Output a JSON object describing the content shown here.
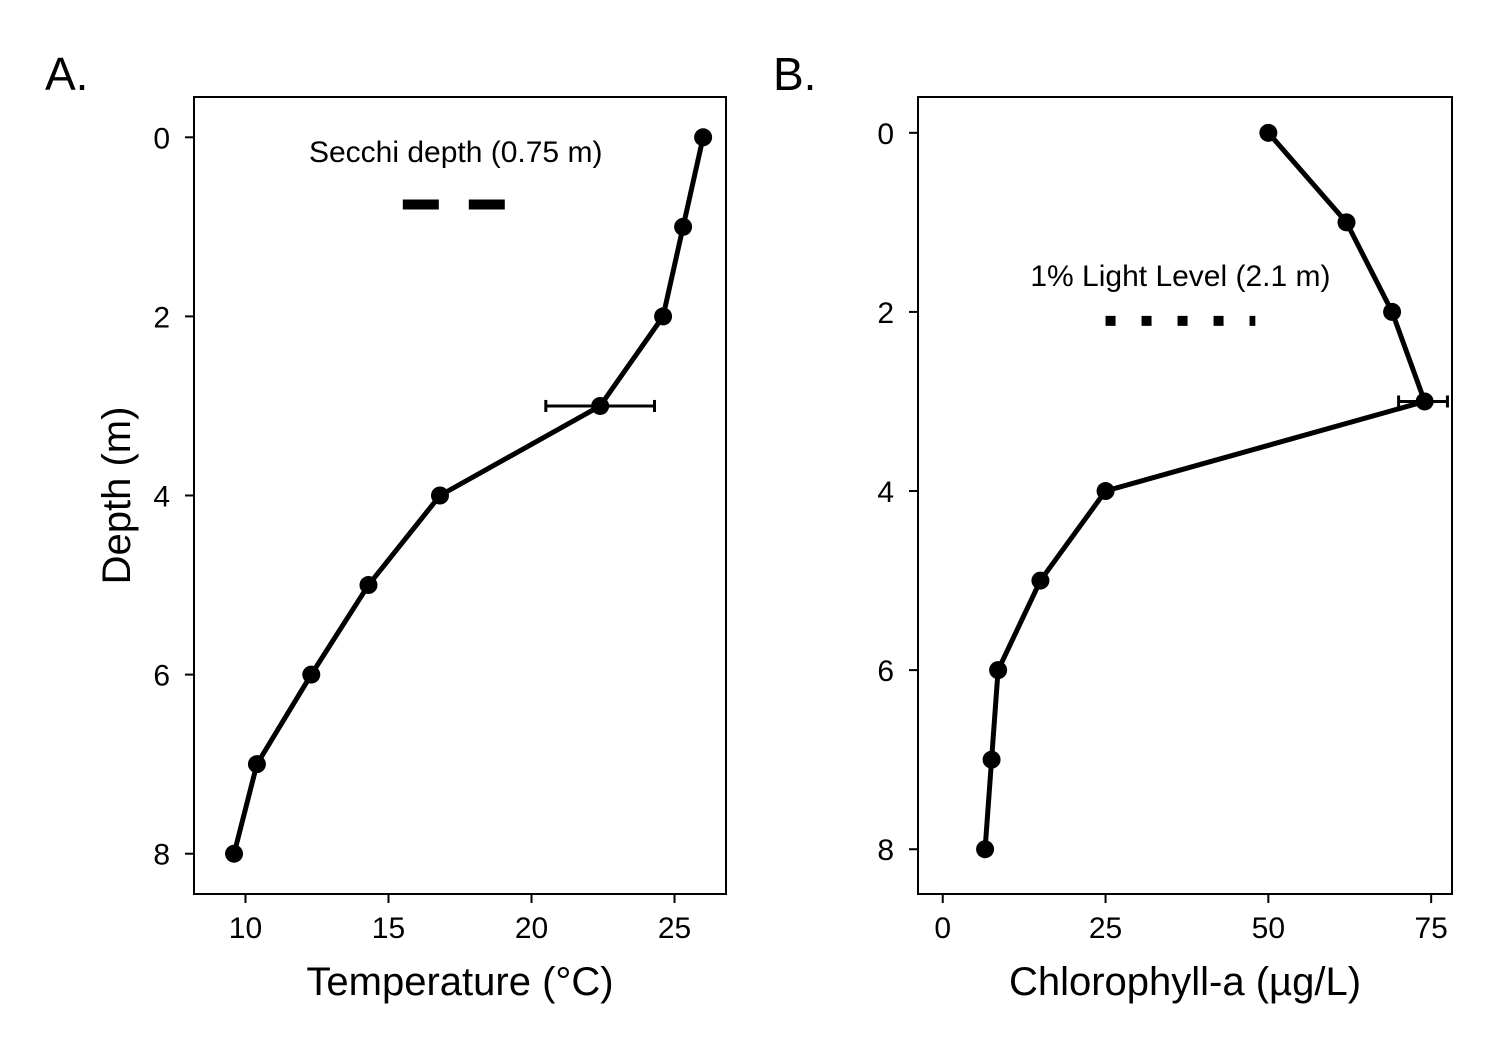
{
  "chart_data": [
    {
      "type": "line",
      "panel_label": "A.",
      "title": "",
      "xlabel": "Temperature (°C)",
      "ylabel": "Depth (m)",
      "xlim": [
        8.2,
        26.8
      ],
      "ylim": [
        8.45,
        -0.45
      ],
      "y_reversed": true,
      "xticks": [
        10,
        15,
        20,
        25
      ],
      "yticks": [
        0,
        2,
        4,
        6,
        8
      ],
      "series": [
        {
          "points": [
            {
              "x": 26.0,
              "y": 0
            },
            {
              "x": 25.3,
              "y": 1
            },
            {
              "x": 24.6,
              "y": 2
            },
            {
              "x": 22.4,
              "y": 3
            },
            {
              "x": 16.8,
              "y": 4
            },
            {
              "x": 14.3,
              "y": 5
            },
            {
              "x": 12.3,
              "y": 6
            },
            {
              "x": 10.4,
              "y": 7
            },
            {
              "x": 9.6,
              "y": 8
            }
          ],
          "error_bars": [
            {
              "y": 3,
              "x_low": 20.5,
              "x_high": 24.3
            }
          ]
        }
      ],
      "annotation": {
        "text": "Secchi depth (0.75 m)",
        "depth": 0.75,
        "x_start": 15.5,
        "x_end": 19.2,
        "line_style": "dashed"
      }
    },
    {
      "type": "line",
      "panel_label": "B.",
      "title": "",
      "xlabel": "Chlorophyll-a (µg/L)",
      "ylabel": "",
      "xlim": [
        -3.8,
        78.2
      ],
      "ylim": [
        8.5,
        -0.4
      ],
      "y_reversed": true,
      "xticks": [
        0,
        25,
        50,
        75
      ],
      "yticks": [
        0,
        2,
        4,
        6,
        8
      ],
      "series": [
        {
          "points": [
            {
              "x": 50.0,
              "y": 0
            },
            {
              "x": 62.0,
              "y": 1
            },
            {
              "x": 69.0,
              "y": 2
            },
            {
              "x": 74.0,
              "y": 3
            },
            {
              "x": 25.0,
              "y": 4
            },
            {
              "x": 15.0,
              "y": 5
            },
            {
              "x": 8.5,
              "y": 6
            },
            {
              "x": 7.5,
              "y": 7
            },
            {
              "x": 6.5,
              "y": 8
            }
          ],
          "error_bars": [
            {
              "y": 3,
              "x_low": 70.0,
              "x_high": 77.5
            }
          ]
        }
      ],
      "annotation": {
        "text": "1% Light Level (2.1 m)",
        "depth": 2.1,
        "x_start": 25.0,
        "x_end": 48.0,
        "line_style": "dotted"
      }
    }
  ]
}
